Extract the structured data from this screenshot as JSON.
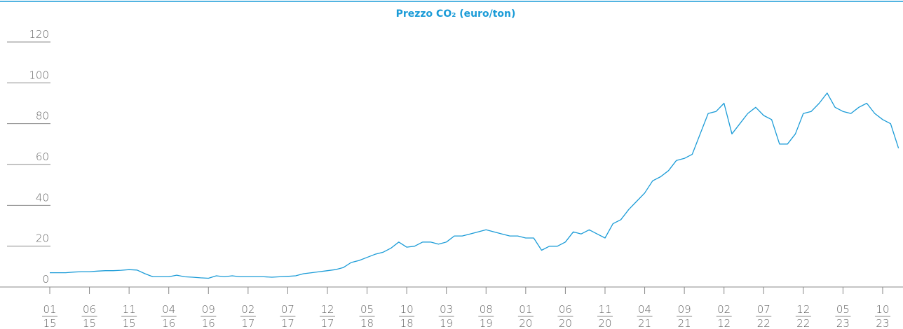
{
  "chart_data": {
    "type": "line",
    "title": "Prezzo CO₂ (euro/ton)",
    "color": "#1a9bd7",
    "categories": [
      [
        "01",
        "15"
      ],
      null,
      null,
      null,
      null,
      [
        "06",
        "15"
      ],
      null,
      null,
      null,
      null,
      [
        "11",
        "15"
      ],
      null,
      null,
      null,
      null,
      [
        "04",
        "16"
      ],
      null,
      null,
      null,
      null,
      [
        "09",
        "16"
      ],
      null,
      null,
      null,
      null,
      [
        "02",
        "17"
      ],
      null,
      null,
      null,
      null,
      [
        "07",
        "17"
      ],
      null,
      null,
      null,
      null,
      [
        "12",
        "17"
      ],
      null,
      null,
      null,
      null,
      [
        "05",
        "18"
      ],
      null,
      null,
      null,
      null,
      [
        "10",
        "18"
      ],
      null,
      null,
      null,
      null,
      [
        "03",
        "19"
      ],
      null,
      null,
      null,
      null,
      [
        "08",
        "19"
      ],
      null,
      null,
      null,
      null,
      [
        "01",
        "20"
      ],
      null,
      null,
      null,
      null,
      [
        "06",
        "20"
      ],
      null,
      null,
      null,
      null,
      [
        "11",
        "20"
      ],
      null,
      null,
      null,
      null,
      [
        "04",
        "21"
      ],
      null,
      null,
      null,
      null,
      [
        "09",
        "21"
      ],
      null,
      null,
      null,
      null,
      [
        "02",
        "12"
      ],
      null,
      null,
      null,
      null,
      [
        "07",
        "22"
      ],
      null,
      null,
      null,
      null,
      [
        "12",
        "22"
      ],
      null,
      null,
      null,
      null,
      [
        "05",
        "23"
      ],
      null,
      null,
      null,
      null,
      [
        "10",
        "23"
      ],
      null,
      null
    ],
    "values": [
      7,
      7,
      7,
      7.3,
      7.5,
      7.5,
      7.8,
      8,
      8,
      8.2,
      8.5,
      8.3,
      6.5,
      5,
      5,
      5,
      5.8,
      5,
      4.8,
      4.5,
      4.3,
      5.5,
      5,
      5.5,
      5,
      5,
      5,
      5,
      4.8,
      5,
      5.2,
      5.5,
      6.5,
      7,
      7.5,
      8,
      8.5,
      9.5,
      12,
      13,
      14.5,
      16,
      17,
      19,
      22,
      19.5,
      20,
      22,
      22,
      21,
      22,
      25,
      25,
      26,
      27,
      28,
      27,
      26,
      25,
      25,
      24,
      24,
      18,
      20,
      20,
      22,
      27,
      26,
      28,
      26,
      24,
      31,
      33,
      38,
      42,
      46,
      52,
      54,
      57,
      62,
      63,
      65,
      75,
      85,
      86,
      90,
      75,
      80,
      85,
      88,
      84,
      82,
      70,
      70,
      75,
      85,
      86,
      90,
      95,
      88,
      86,
      85,
      88,
      90,
      85,
      82,
      80,
      68
    ],
    "ylim": [
      0,
      120
    ],
    "yticks": [
      0,
      20,
      40,
      60,
      80,
      100,
      120
    ]
  }
}
